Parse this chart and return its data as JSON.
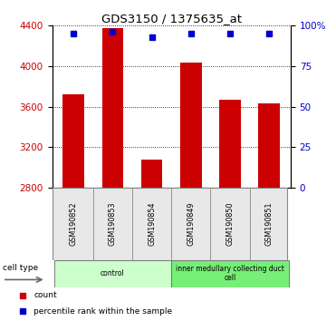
{
  "title": "GDS3150 / 1375635_at",
  "samples": [
    "GSM190852",
    "GSM190853",
    "GSM190854",
    "GSM190849",
    "GSM190850",
    "GSM190851"
  ],
  "bar_values": [
    3720,
    4380,
    3080,
    4040,
    3670,
    3630
  ],
  "percentile_values": [
    95,
    96,
    93,
    95,
    95,
    95
  ],
  "ylim_left": [
    2800,
    4400
  ],
  "ylim_right": [
    0,
    100
  ],
  "yticks_left": [
    2800,
    3200,
    3600,
    4000,
    4400
  ],
  "yticks_right": [
    0,
    25,
    50,
    75,
    100
  ],
  "ytick_labels_right": [
    "0",
    "25",
    "50",
    "75",
    "100%"
  ],
  "bar_color": "#cc0000",
  "percentile_color": "#0000cc",
  "bar_bottom": 2800,
  "groups": [
    {
      "label": "control",
      "n": 3,
      "color": "#ccffcc"
    },
    {
      "label": "inner medullary collecting duct\ncell",
      "n": 3,
      "color": "#77ee77"
    }
  ],
  "legend_items": [
    {
      "label": "count",
      "color": "#cc0000"
    },
    {
      "label": "percentile rank within the sample",
      "color": "#0000cc"
    }
  ],
  "cell_type_label": "cell type",
  "background_color": "#ffffff",
  "tick_label_color_left": "#cc0000",
  "tick_label_color_right": "#0000cc"
}
